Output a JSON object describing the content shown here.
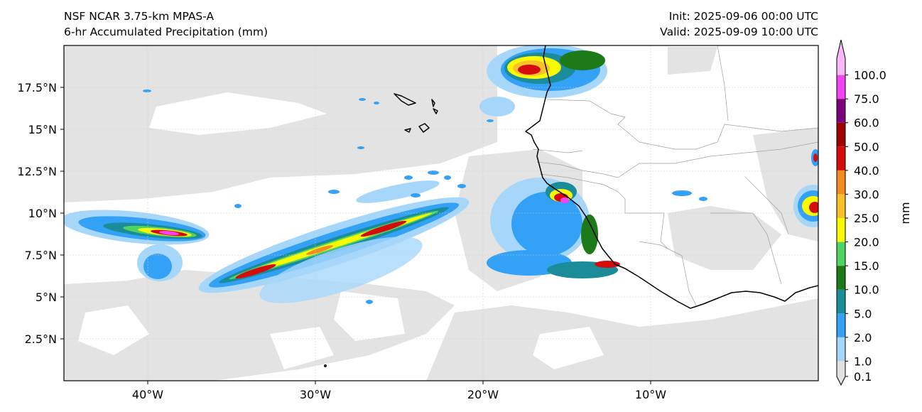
{
  "title": {
    "left_line1": "NSF NCAR 3.75-km MPAS-A",
    "left_line2": "6-hr Accumulated Precipitation (mm)",
    "right_line1": "Init: 2025-09-06 00:00 UTC",
    "right_line2": "Valid: 2025-09-09 10:00 UTC"
  },
  "map": {
    "lon_range": [
      -45,
      0
    ],
    "lat_range": [
      0,
      20
    ],
    "lon_ticks": [
      {
        "value": -40,
        "label": "40°W"
      },
      {
        "value": -30,
        "label": "30°W"
      },
      {
        "value": -20,
        "label": "20°W"
      },
      {
        "value": -10,
        "label": "10°W"
      }
    ],
    "lat_ticks": [
      {
        "value": 2.5,
        "label": "2.5°N"
      },
      {
        "value": 5,
        "label": "5°N"
      },
      {
        "value": 7.5,
        "label": "7.5°N"
      },
      {
        "value": 10,
        "label": "10°N"
      },
      {
        "value": 12.5,
        "label": "12.5°N"
      },
      {
        "value": 15,
        "label": "15°N"
      },
      {
        "value": 17.5,
        "label": "17.5°N"
      }
    ],
    "grid": true
  },
  "colorbar": {
    "unit_label": "mm",
    "levels": [
      {
        "label": "0.1",
        "color": "#e1e1e1"
      },
      {
        "label": "1.0",
        "color": "#a6d7fb"
      },
      {
        "label": "2.0",
        "color": "#33a1f6"
      },
      {
        "label": "5.0",
        "color": "#1a8c9a"
      },
      {
        "label": "10.0",
        "color": "#1c7a18"
      },
      {
        "label": "15.0",
        "color": "#4fd464"
      },
      {
        "label": "20.0",
        "color": "#fbfb00"
      },
      {
        "label": "25.0",
        "color": "#f9c22b"
      },
      {
        "label": "30.0",
        "color": "#f18b22"
      },
      {
        "label": "40.0",
        "color": "#d50c0c"
      },
      {
        "label": "50.0",
        "color": "#9e0000"
      },
      {
        "label": "60.0",
        "color": "#7d007d"
      },
      {
        "label": "75.0",
        "color": "#f244f2"
      },
      {
        "label": "100.0",
        "color": "#f9b8f9"
      }
    ]
  }
}
